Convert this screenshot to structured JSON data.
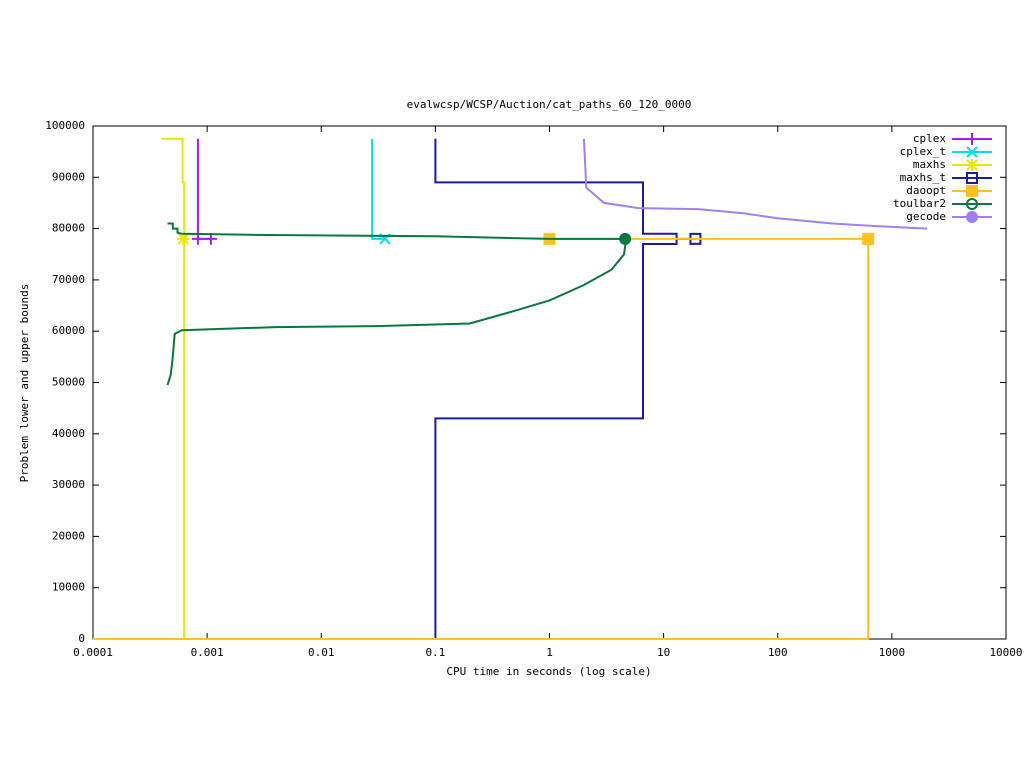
{
  "chart_data": {
    "type": "line",
    "title": "evalwcsp/WCSP/Auction/cat_paths_60_120_0000",
    "x_label": "CPU time in seconds (log scale)",
    "y_label": "Problem lower and upper bounds",
    "xlog": true,
    "xlim": [
      0.0001,
      10000
    ],
    "xticks": [
      0.0001,
      0.001,
      0.01,
      0.1,
      1,
      10,
      100,
      1000,
      10000
    ],
    "ylim": [
      0,
      100000
    ],
    "yticks": [
      0,
      10000,
      20000,
      30000,
      40000,
      50000,
      60000,
      70000,
      80000,
      90000,
      100000
    ],
    "legend": "top-right",
    "series": [
      {
        "name": "cplex",
        "color": "#a020f0",
        "symbol": "plus",
        "x": [
          0.00083,
          0.00083,
          0.00108
        ],
        "values": [
          97500,
          78000,
          78000
        ],
        "marker_x": [
          0.00083,
          0.00108
        ],
        "marker_y": [
          78000,
          78000
        ]
      },
      {
        "name": "cplex_t",
        "color": "#00e0e8",
        "symbol": "cross",
        "x": [
          0.0279,
          0.0279,
          0.0362
        ],
        "values": [
          97500,
          78000,
          78000
        ],
        "marker_x": [
          0.0362
        ],
        "marker_y": [
          78000
        ]
      },
      {
        "name": "maxhs",
        "color": "#e8e800",
        "symbol": "star",
        "x": [
          0.0004,
          0.00061,
          0.00061,
          0.00063,
          0.00063
        ],
        "values": [
          97500,
          97500,
          89000,
          89000,
          0
        ],
        "marker_x": [
          0.00062
        ],
        "marker_y": [
          78000
        ]
      },
      {
        "name": "maxhs_t",
        "color": "#1a1aa8",
        "symbol": "box",
        "x": [
          0.1,
          0.1,
          6.6,
          6.6,
          13,
          13,
          19,
          null,
          0.1,
          0.1,
          6.6,
          6.6,
          13,
          13,
          19
        ],
        "values": [
          97500,
          89000,
          89000,
          79000,
          79000,
          78000,
          78000,
          null,
          0,
          43000,
          43000,
          77000,
          77000,
          78000,
          78000
        ],
        "marker_x": [
          19
        ],
        "marker_y": [
          78000
        ]
      },
      {
        "name": "daoopt",
        "color": "#ffc020",
        "symbol": "filled-box",
        "x": [
          0.0001,
          620,
          620,
          null,
          1,
          620
        ],
        "values": [
          0,
          0,
          78000,
          null,
          78000,
          78000
        ],
        "marker_x": [
          1,
          620
        ],
        "marker_y": [
          78000,
          78000
        ]
      },
      {
        "name": "toulbar2",
        "color": "#087840",
        "symbol": "circle",
        "x": [
          0.00045,
          0.0005,
          0.0005,
          0.00055,
          0.00055,
          0.0006,
          0.0024,
          0.1,
          1,
          4.7,
          null,
          0.00045,
          0.00048,
          0.0005,
          0.00052,
          0.0006,
          0.004,
          0.03,
          0.2,
          0.5,
          1,
          2,
          3.5,
          4.5,
          4.7
        ],
        "values": [
          81000,
          81000,
          80000,
          80000,
          79200,
          79000,
          78800,
          78500,
          78000,
          78000,
          null,
          49500,
          51500,
          55000,
          59500,
          60200,
          60800,
          61000,
          61500,
          64000,
          66000,
          69000,
          72000,
          75000,
          78000
        ],
        "marker_x": [
          4.6
        ],
        "marker_y": [
          78000
        ]
      },
      {
        "name": "gecode",
        "color": "#a080f0",
        "symbol": "filled-circle",
        "x": [
          2.0,
          2.1,
          3,
          6,
          20,
          50,
          100,
          300,
          700,
          2040
        ],
        "values": [
          97500,
          88000,
          85000,
          84000,
          83800,
          83000,
          82000,
          81000,
          80500,
          80000
        ],
        "marker_x": [],
        "marker_y": []
      }
    ]
  }
}
